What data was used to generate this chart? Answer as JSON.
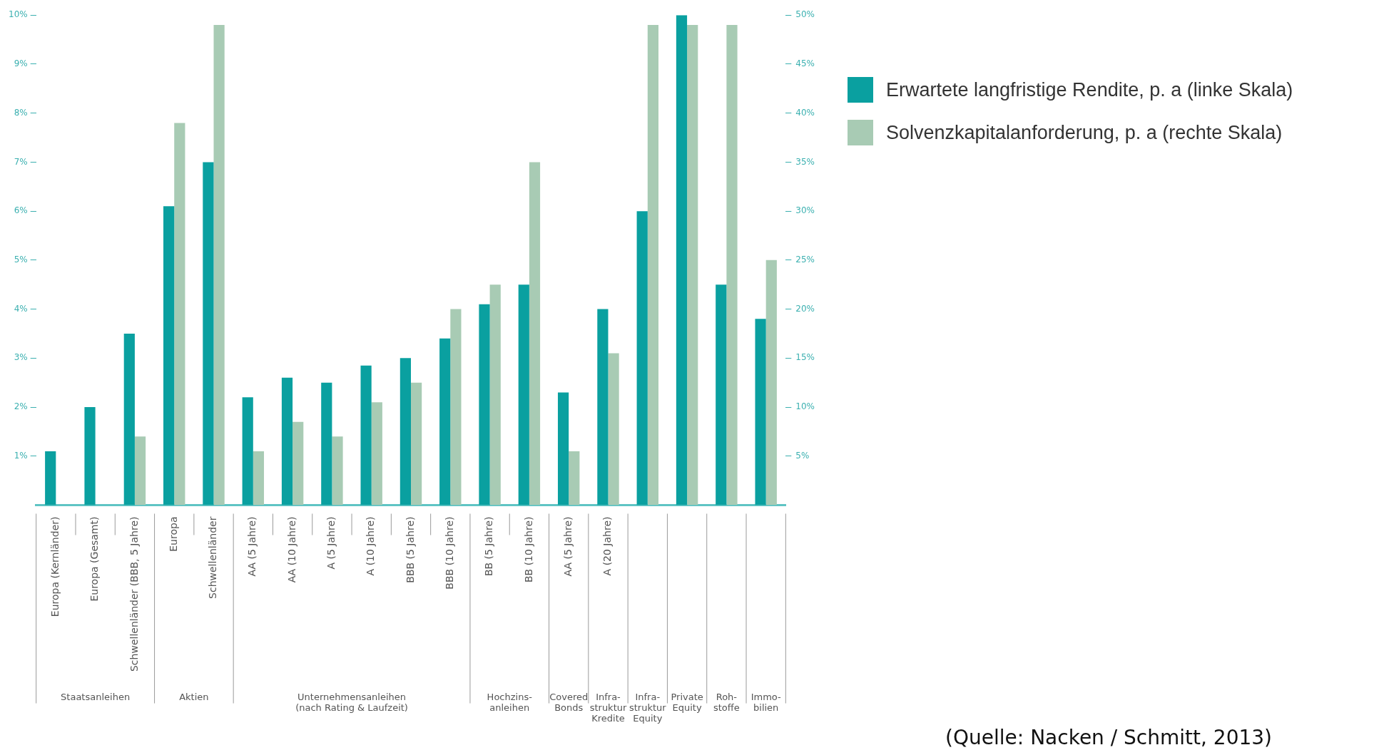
{
  "chart_data": {
    "type": "bar",
    "categories": [
      "Europa (Kernländer)",
      "Europa (Gesamt)",
      "Schwellenländer (BBB, 5 Jahre)",
      "Europa",
      "Schwellenländer",
      "AA (5 Jahre)",
      "AA (10 Jahre)",
      "A (5 Jahre)",
      "A (10 Jahre)",
      "BBB (5 Jahre)",
      "BBB (10 Jahre)",
      "BB (5 Jahre)",
      "BB (10 Jahre)",
      "AA (5 Jahre)",
      "A (20 Jahre)",
      null,
      null,
      null,
      null
    ],
    "series": [
      {
        "name": "Erwartete langfristige Rendite, p. a (linke Skala)",
        "color": "#0aa0a0",
        "values": [
          1.1,
          2.0,
          3.5,
          6.1,
          7.0,
          2.2,
          2.6,
          2.5,
          2.85,
          3.0,
          3.4,
          4.1,
          4.5,
          2.3,
          4.0,
          6.0,
          10.0,
          4.5,
          3.8
        ]
      },
      {
        "name": "Solvenzkapitalanforderung, p. a (rechte Skala)",
        "color": "#a8cbb4",
        "axis": "y2",
        "values": [
          null,
          null,
          7,
          39,
          49,
          5.5,
          8.5,
          7,
          10.5,
          12.5,
          20,
          22.5,
          35,
          5.5,
          15.5,
          49,
          49,
          49,
          25
        ]
      }
    ],
    "ylim": [
      0,
      10
    ],
    "yticks": [
      {
        "value": 1,
        "label": "1%"
      },
      {
        "value": 2,
        "label": "2%"
      },
      {
        "value": 3,
        "label": "3%"
      },
      {
        "value": 4,
        "label": "4%"
      },
      {
        "value": 5,
        "label": "5%"
      },
      {
        "value": 6,
        "label": "6%"
      },
      {
        "value": 7,
        "label": "7%"
      },
      {
        "value": 8,
        "label": "8%"
      },
      {
        "value": 9,
        "label": "9%"
      },
      {
        "value": 10,
        "label": "10%"
      }
    ],
    "y2lim": [
      0,
      50
    ],
    "y2ticks": [
      {
        "value": 5,
        "label": "5%"
      },
      {
        "value": 10,
        "label": "10%"
      },
      {
        "value": 15,
        "label": "15%"
      },
      {
        "value": 20,
        "label": "20%"
      },
      {
        "value": 25,
        "label": "25%"
      },
      {
        "value": 30,
        "label": "30%"
      },
      {
        "value": 35,
        "label": "35%"
      },
      {
        "value": 40,
        "label": "40%"
      },
      {
        "value": 45,
        "label": "45%"
      },
      {
        "value": 50,
        "label": "50%"
      }
    ],
    "grid": false,
    "legend": "top right",
    "annotations": [
      "Staatsanleihen",
      "Aktien",
      "Unternehmensanleihen\n(nach Rating & Laufzeit)",
      "Hochzins-\nanleihen",
      "Covered\nBonds",
      "Infra-\nstruktur\nKredite",
      "Infra-\nstruktur\nEquity",
      "Private\nEquity",
      "Roh-\nstoffe",
      "Immo-\nbilien",
      "(Quelle: Nacken / Schmitt, 2013)"
    ]
  }
}
